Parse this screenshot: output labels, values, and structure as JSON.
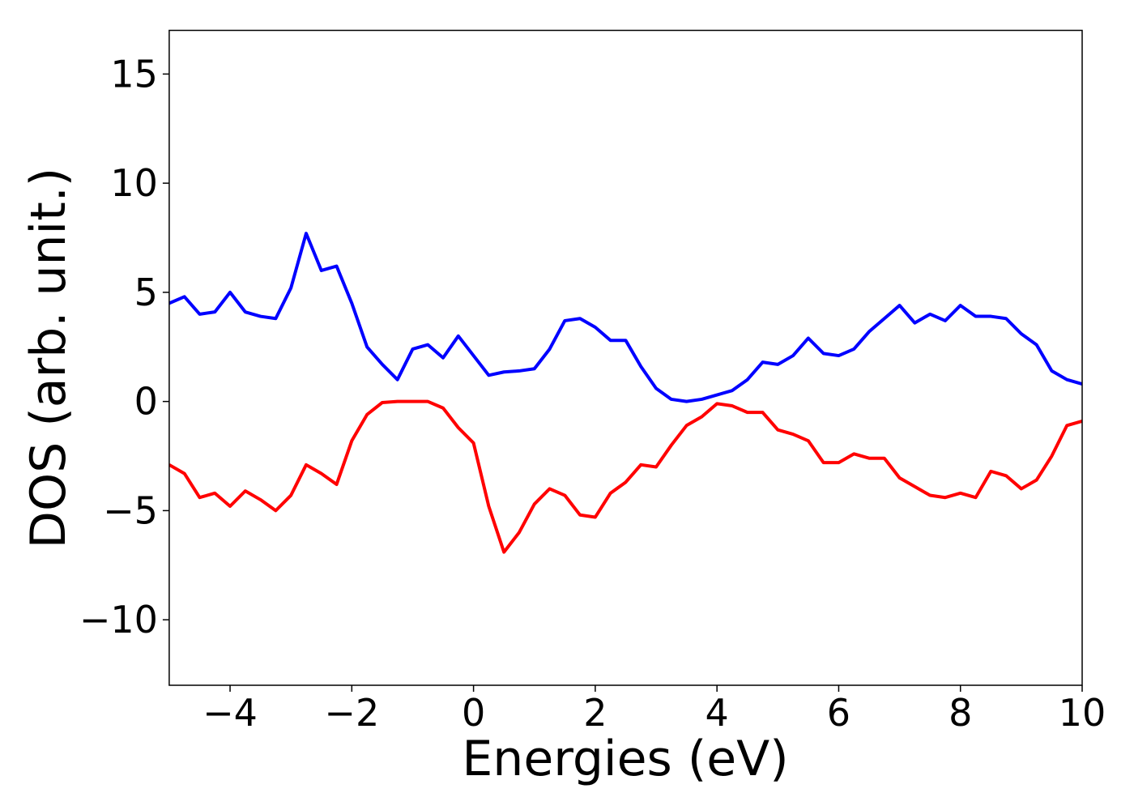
{
  "chart_data": {
    "type": "line",
    "xlabel": "Energies (eV)",
    "ylabel": "DOS (arb. unit.)",
    "x": [
      -5,
      -4.75,
      -4.5,
      -4.25,
      -4,
      -3.75,
      -3.5,
      -3.25,
      -3,
      -2.75,
      -2.5,
      -2.25,
      -2,
      -1.75,
      -1.5,
      -1.25,
      -1,
      -0.75,
      -0.5,
      -0.25,
      0,
      0.25,
      0.5,
      0.75,
      1,
      1.25,
      1.5,
      1.75,
      2,
      2.25,
      2.5,
      2.75,
      3,
      3.25,
      3.5,
      3.75,
      4,
      4.25,
      4.5,
      4.75,
      5,
      5.25,
      5.5,
      5.75,
      6,
      6.25,
      6.5,
      6.75,
      7,
      7.25,
      7.5,
      7.75,
      8,
      8.25,
      8.5,
      8.75,
      9,
      9.25,
      9.5,
      9.75,
      10
    ],
    "series": [
      {
        "color": "#0000ff",
        "values": [
          4.5,
          4.8,
          4.0,
          4.1,
          5.0,
          4.1,
          3.9,
          3.8,
          5.2,
          7.7,
          6.0,
          6.2,
          4.5,
          2.5,
          1.7,
          1.0,
          2.4,
          2.6,
          2.0,
          3.0,
          2.1,
          1.2,
          1.35,
          1.4,
          1.5,
          2.4,
          3.7,
          3.8,
          3.4,
          2.8,
          2.8,
          1.6,
          0.6,
          0.1,
          0.0,
          0.1,
          0.3,
          0.5,
          1.0,
          1.8,
          1.7,
          2.1,
          2.9,
          2.2,
          2.1,
          2.4,
          3.2,
          3.8,
          4.4,
          3.6,
          4.0,
          3.7,
          4.4,
          3.9,
          3.9,
          3.8,
          3.1,
          2.6,
          1.4,
          1.0,
          0.8
        ]
      },
      {
        "color": "#ff0000",
        "values": [
          -2.9,
          -3.3,
          -4.4,
          -4.2,
          -4.8,
          -4.1,
          -4.5,
          -5.0,
          -4.3,
          -2.9,
          -3.3,
          -3.8,
          -1.8,
          -0.6,
          -0.05,
          0,
          0,
          0,
          -0.3,
          -1.2,
          -1.9,
          -4.8,
          -6.9,
          -6.0,
          -4.7,
          -4.0,
          -4.3,
          -5.2,
          -5.3,
          -4.2,
          -3.7,
          -2.9,
          -3.0,
          -2.0,
          -1.1,
          -0.7,
          -0.1,
          -0.2,
          -0.5,
          -0.5,
          -1.3,
          -1.5,
          -1.8,
          -2.8,
          -2.8,
          -2.4,
          -2.6,
          -2.6,
          -3.5,
          -3.9,
          -4.3,
          -4.4,
          -4.2,
          -4.4,
          -3.2,
          -3.4,
          -4.0,
          -3.6,
          -2.5,
          -1.1,
          -0.9
        ]
      }
    ],
    "xlim": [
      -5,
      10
    ],
    "xticks": [
      {
        "value": -4,
        "label": "−4"
      },
      {
        "value": -2,
        "label": "−2"
      },
      0,
      2,
      4,
      6,
      8,
      10
    ],
    "ylim": [
      -13,
      17
    ],
    "yticks": [
      {
        "value": -10,
        "label": "−10"
      },
      {
        "value": -5,
        "label": "−5"
      },
      0,
      5,
      10,
      15
    ]
  }
}
